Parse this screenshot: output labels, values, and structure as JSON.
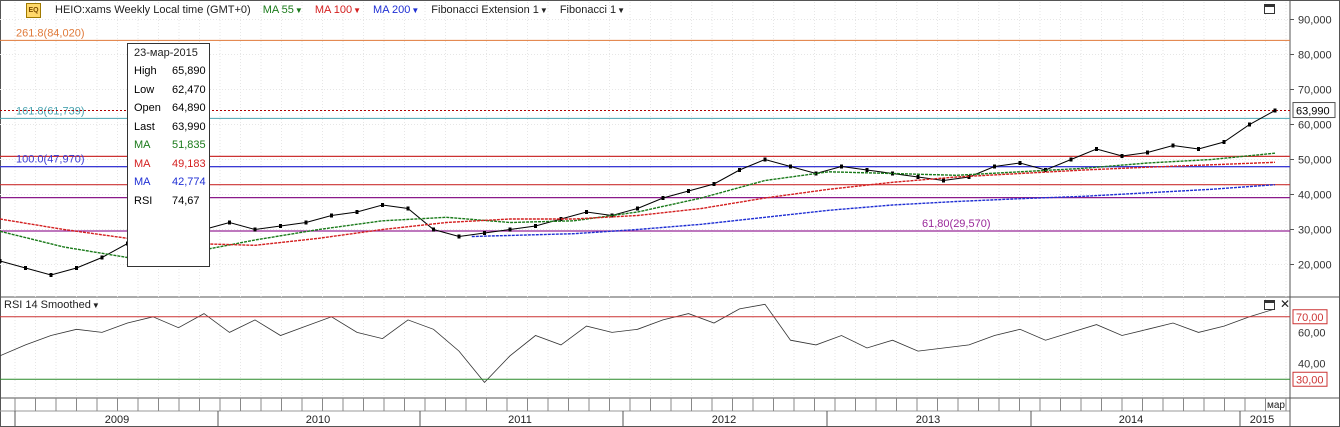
{
  "header": {
    "instrument": "HEIO:xams Weekly Local time (GMT+0)",
    "ma55": "MA 55",
    "ma100": "MA 100",
    "ma200": "MA 200",
    "fib_ext": "Fibonacci Extension 1",
    "fib": "Fibonacci 1",
    "logo_text": "EQ"
  },
  "tooltip": {
    "date": "23-мар-2015",
    "rows": [
      {
        "k": "High",
        "v": "65,890",
        "color": "#000000"
      },
      {
        "k": "Low",
        "v": "62,470",
        "color": "#000000"
      },
      {
        "k": "Open",
        "v": "64,890",
        "color": "#000000"
      },
      {
        "k": "Last",
        "v": "63,990",
        "color": "#000000"
      },
      {
        "k": "MA",
        "v": "51,835",
        "color": "#1a7a1a"
      },
      {
        "k": "MA",
        "v": "49,183",
        "color": "#d42020"
      },
      {
        "k": "MA",
        "v": "42,774",
        "color": "#1f2fd4"
      },
      {
        "k": "RSI",
        "v": "74,67",
        "color": "#000000"
      }
    ]
  },
  "rsi_panel": {
    "title": "RSI 14 Smoothed",
    "upper_label": "70,00",
    "lower_label": "30,00",
    "ticks": [
      "60,00",
      "40,00"
    ]
  },
  "chart_data": {
    "type": "line",
    "price_axis_ticks": [
      "90,000",
      "80,000",
      "70,000",
      "60,000",
      "50,000",
      "40,000",
      "30,000",
      "20,000"
    ],
    "price_axis_values": [
      90000,
      80000,
      70000,
      60000,
      50000,
      40000,
      30000,
      20000
    ],
    "ylim": [
      11000,
      95000
    ],
    "last_price_label": "63,990",
    "last_price": 63990,
    "x_labels": [
      "2009",
      "2010",
      "2011",
      "2012",
      "2013",
      "2014",
      "2015"
    ],
    "x_top_label": "мар",
    "fib_levels": [
      {
        "label": "261.8(84,020)",
        "value": 84020,
        "color": "#e07a3a"
      },
      {
        "label": "161.8(61,739)",
        "value": 61739,
        "color": "#4aa3b0"
      },
      {
        "label": "100.0(47,970)",
        "value": 47970,
        "color": "#3a3ad4"
      },
      {
        "label": "61,80(29,570)",
        "value": 29570,
        "color": "#9a2a9a"
      }
    ],
    "horizontal_lines": [
      {
        "value": 50900,
        "color": "#cc3333"
      },
      {
        "value": 47970,
        "color": "#3a3ad4"
      },
      {
        "value": 42800,
        "color": "#cc3333"
      },
      {
        "value": 39100,
        "color": "#8a1a8a"
      },
      {
        "value": 29570,
        "color": "#8a1a8a"
      }
    ],
    "series": [
      {
        "name": "HEIO:xams",
        "color": "#000000",
        "t": [
          0,
          0.02,
          0.04,
          0.06,
          0.08,
          0.1,
          0.12,
          0.14,
          0.16,
          0.18,
          0.2,
          0.22,
          0.24,
          0.26,
          0.28,
          0.3,
          0.32,
          0.34,
          0.36,
          0.38,
          0.4,
          0.42,
          0.44,
          0.46,
          0.48,
          0.5,
          0.52,
          0.54,
          0.56,
          0.58,
          0.6,
          0.62,
          0.64,
          0.66,
          0.68,
          0.7,
          0.72,
          0.74,
          0.76,
          0.78,
          0.8,
          0.82,
          0.84,
          0.86,
          0.88,
          0.9,
          0.92,
          0.94,
          0.96,
          0.98,
          1.0
        ],
        "values": [
          21000,
          19000,
          17000,
          19000,
          22000,
          26000,
          27000,
          28000,
          30000,
          32000,
          30000,
          31000,
          32000,
          34000,
          35000,
          37000,
          36000,
          30000,
          28000,
          29000,
          30000,
          31000,
          33000,
          35000,
          34000,
          36000,
          39000,
          41000,
          43000,
          47000,
          50000,
          48000,
          46000,
          48000,
          47000,
          46000,
          45000,
          44000,
          45000,
          48000,
          49000,
          47000,
          50000,
          53000,
          51000,
          52000,
          54000,
          53000,
          55000,
          60000,
          64000
        ]
      },
      {
        "name": "MA 55",
        "color": "#1a7a1a",
        "t": [
          0,
          0.05,
          0.1,
          0.15,
          0.2,
          0.25,
          0.3,
          0.35,
          0.4,
          0.45,
          0.5,
          0.55,
          0.6,
          0.65,
          0.7,
          0.75,
          0.8,
          0.85,
          0.9,
          0.95,
          1.0
        ],
        "values": [
          29500,
          25000,
          22000,
          23500,
          27000,
          30000,
          32500,
          33500,
          32000,
          32500,
          35000,
          39000,
          44000,
          46500,
          46000,
          45500,
          46500,
          47500,
          49000,
          50000,
          51800
        ]
      },
      {
        "name": "MA 100",
        "color": "#d42020",
        "t": [
          0,
          0.05,
          0.1,
          0.15,
          0.2,
          0.25,
          0.3,
          0.35,
          0.4,
          0.45,
          0.5,
          0.55,
          0.6,
          0.65,
          0.7,
          0.75,
          0.8,
          0.85,
          0.9,
          0.95,
          1.0
        ],
        "values": [
          33000,
          30000,
          27500,
          26000,
          25500,
          27500,
          30000,
          32000,
          33000,
          33000,
          34000,
          36000,
          39000,
          41500,
          43500,
          45000,
          46000,
          47000,
          47800,
          48500,
          49200
        ]
      },
      {
        "name": "MA 200",
        "color": "#1f2fd4",
        "t": [
          0.37,
          0.45,
          0.5,
          0.55,
          0.6,
          0.65,
          0.7,
          0.75,
          0.8,
          0.85,
          0.9,
          0.95,
          1.0
        ],
        "values": [
          28000,
          28800,
          30000,
          31500,
          33500,
          35500,
          37000,
          38000,
          38800,
          39500,
          40500,
          41500,
          42800
        ]
      },
      {
        "name": "RSI 14 Smoothed",
        "color": "#333333",
        "t": [
          0,
          0.02,
          0.04,
          0.06,
          0.08,
          0.1,
          0.12,
          0.14,
          0.16,
          0.18,
          0.2,
          0.22,
          0.24,
          0.26,
          0.28,
          0.3,
          0.32,
          0.34,
          0.36,
          0.38,
          0.4,
          0.42,
          0.44,
          0.46,
          0.48,
          0.5,
          0.52,
          0.54,
          0.56,
          0.58,
          0.6,
          0.62,
          0.64,
          0.66,
          0.68,
          0.7,
          0.72,
          0.74,
          0.76,
          0.78,
          0.8,
          0.82,
          0.84,
          0.86,
          0.88,
          0.9,
          0.92,
          0.94,
          0.96,
          0.98,
          1.0
        ],
        "values": [
          45,
          52,
          58,
          62,
          60,
          66,
          70,
          63,
          72,
          60,
          68,
          58,
          64,
          70,
          60,
          56,
          68,
          62,
          48,
          28,
          45,
          58,
          52,
          64,
          60,
          62,
          68,
          72,
          66,
          75,
          78,
          55,
          52,
          58,
          50,
          55,
          48,
          50,
          52,
          58,
          62,
          55,
          60,
          65,
          58,
          62,
          66,
          60,
          64,
          70,
          75
        ]
      }
    ],
    "rsi_levels": [
      70,
      30
    ],
    "rsi_ylim": [
      18,
      82
    ],
    "grid": true,
    "legend": "top-left"
  }
}
